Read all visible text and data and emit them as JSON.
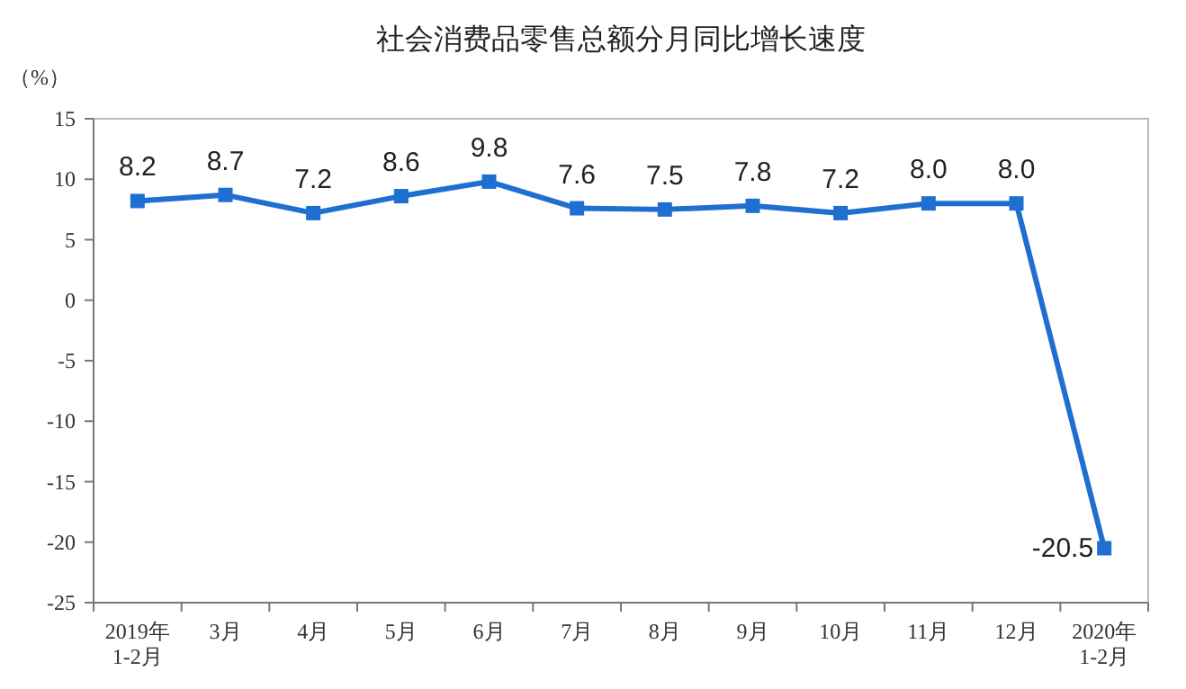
{
  "chart_data": {
    "type": "line",
    "title": "社会消费品零售总额分月同比增长速度",
    "ylabel": "（%）",
    "categories": [
      "2019年\n1-2月",
      "3月",
      "4月",
      "5月",
      "6月",
      "7月",
      "8月",
      "9月",
      "10月",
      "11月",
      "12月",
      "2020年\n1-2月"
    ],
    "series": [
      {
        "color": "#1f6fd1",
        "values": [
          8.2,
          8.7,
          7.2,
          8.6,
          9.8,
          7.6,
          7.5,
          7.8,
          7.2,
          8.0,
          8.0,
          -20.5
        ]
      }
    ],
    "value_labels": [
      "8.2",
      "8.7",
      "7.2",
      "8.6",
      "9.8",
      "7.6",
      "7.5",
      "7.8",
      "7.2",
      "8.0",
      "8.0",
      "-20.5"
    ],
    "ylim": [
      -25,
      15
    ],
    "yticks": [
      15,
      10,
      5,
      0,
      -5,
      -10,
      -15,
      -20,
      -25
    ],
    "marker": "square",
    "line_style": "solid",
    "grid": false
  }
}
